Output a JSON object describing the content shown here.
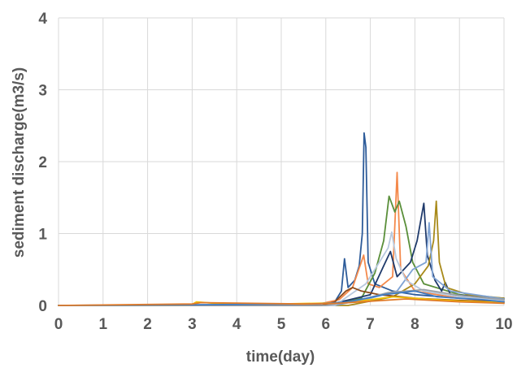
{
  "chart_data": {
    "type": "line",
    "title": "",
    "xlabel": "time(day)",
    "ylabel": "sediment discharge(m3/s)",
    "xlim": [
      0,
      10
    ],
    "ylim": [
      0,
      4
    ],
    "xticks": [
      0,
      1,
      2,
      3,
      4,
      5,
      6,
      7,
      8,
      9,
      10
    ],
    "yticks": [
      0,
      1,
      2,
      3,
      4
    ],
    "grid": true,
    "legend": "none",
    "series": [
      {
        "color": "#2e5c9a",
        "points": [
          [
            0,
            0
          ],
          [
            5.6,
            0
          ],
          [
            6.2,
            0.05
          ],
          [
            6.35,
            0.2
          ],
          [
            6.42,
            0.65
          ],
          [
            6.5,
            0.25
          ],
          [
            6.65,
            0.35
          ],
          [
            6.75,
            0.55
          ],
          [
            6.82,
            1.0
          ],
          [
            6.86,
            2.4
          ],
          [
            6.9,
            2.2
          ],
          [
            6.95,
            0.6
          ],
          [
            7.1,
            0.3
          ],
          [
            7.5,
            0.2
          ],
          [
            8.0,
            0.15
          ],
          [
            9.0,
            0.1
          ],
          [
            10,
            0.07
          ]
        ]
      },
      {
        "color": "#f4894b",
        "points": [
          [
            0,
            0
          ],
          [
            5.7,
            0
          ],
          [
            6.3,
            0.08
          ],
          [
            6.6,
            0.25
          ],
          [
            6.85,
            0.7
          ],
          [
            6.95,
            0.3
          ],
          [
            7.2,
            0.25
          ],
          [
            7.5,
            0.4
          ],
          [
            7.6,
            1.85
          ],
          [
            7.68,
            0.5
          ],
          [
            8.0,
            0.2
          ],
          [
            9.0,
            0.1
          ],
          [
            10,
            0.05
          ]
        ]
      },
      {
        "color": "#5a8f3a",
        "points": [
          [
            0,
            0
          ],
          [
            6.0,
            0
          ],
          [
            6.8,
            0.1
          ],
          [
            7.1,
            0.45
          ],
          [
            7.3,
            0.9
          ],
          [
            7.42,
            1.52
          ],
          [
            7.55,
            1.3
          ],
          [
            7.65,
            1.45
          ],
          [
            7.8,
            1.1
          ],
          [
            7.95,
            0.6
          ],
          [
            8.2,
            0.3
          ],
          [
            9.0,
            0.15
          ],
          [
            10,
            0.08
          ]
        ]
      },
      {
        "color": "#1f3a6b",
        "points": [
          [
            0,
            0
          ],
          [
            6.0,
            0
          ],
          [
            7.0,
            0.15
          ],
          [
            7.3,
            0.55
          ],
          [
            7.45,
            0.75
          ],
          [
            7.6,
            0.4
          ],
          [
            7.9,
            0.6
          ],
          [
            8.05,
            0.9
          ],
          [
            8.2,
            1.42
          ],
          [
            8.28,
            0.7
          ],
          [
            8.45,
            0.35
          ],
          [
            8.6,
            0.2
          ],
          [
            8.68,
            0.32
          ],
          [
            8.8,
            0.15
          ],
          [
            10,
            0.1
          ]
        ]
      },
      {
        "color": "#a88a1a",
        "points": [
          [
            0,
            0
          ],
          [
            6.5,
            0
          ],
          [
            7.5,
            0.12
          ],
          [
            8.0,
            0.3
          ],
          [
            8.3,
            0.55
          ],
          [
            8.42,
            0.9
          ],
          [
            8.48,
            1.45
          ],
          [
            8.55,
            0.6
          ],
          [
            8.7,
            0.25
          ],
          [
            9.2,
            0.15
          ],
          [
            10,
            0.1
          ]
        ]
      },
      {
        "color": "#7fa3d4",
        "points": [
          [
            0,
            0
          ],
          [
            6.2,
            0
          ],
          [
            7.0,
            0.1
          ],
          [
            7.6,
            0.2
          ],
          [
            7.95,
            0.5
          ],
          [
            8.1,
            0.55
          ],
          [
            8.25,
            0.6
          ],
          [
            8.32,
            1.15
          ],
          [
            8.4,
            0.4
          ],
          [
            8.8,
            0.2
          ],
          [
            10,
            0.09
          ]
        ]
      },
      {
        "color": "#b8c9de",
        "points": [
          [
            0,
            0
          ],
          [
            6.2,
            0
          ],
          [
            6.9,
            0.3
          ],
          [
            7.2,
            0.6
          ],
          [
            7.4,
            0.8
          ],
          [
            7.48,
            1.02
          ],
          [
            7.58,
            0.65
          ],
          [
            7.8,
            0.35
          ],
          [
            8.2,
            0.2
          ],
          [
            9.0,
            0.12
          ],
          [
            10,
            0.07
          ]
        ]
      },
      {
        "color": "#8b4a1a",
        "points": [
          [
            0,
            0
          ],
          [
            5.9,
            0
          ],
          [
            6.2,
            0.05
          ],
          [
            6.45,
            0.2
          ],
          [
            6.6,
            0.25
          ],
          [
            6.8,
            0.2
          ],
          [
            7.2,
            0.15
          ],
          [
            8.0,
            0.1
          ],
          [
            9.0,
            0.07
          ],
          [
            10,
            0.05
          ]
        ]
      },
      {
        "color": "#f2c200",
        "points": [
          [
            0,
            0
          ],
          [
            2.95,
            0
          ],
          [
            3.1,
            0.05
          ],
          [
            3.5,
            0.03
          ],
          [
            5.0,
            0.02
          ],
          [
            6.5,
            0.04
          ],
          [
            7.0,
            0.08
          ],
          [
            7.5,
            0.12
          ],
          [
            8.0,
            0.1
          ],
          [
            9.0,
            0.06
          ],
          [
            10,
            0.04
          ]
        ]
      },
      {
        "color": "#9aa0a6",
        "points": [
          [
            0,
            0
          ],
          [
            6.0,
            0
          ],
          [
            6.8,
            0.08
          ],
          [
            7.4,
            0.18
          ],
          [
            8.2,
            0.22
          ],
          [
            9.0,
            0.14
          ],
          [
            10,
            0.08
          ]
        ]
      },
      {
        "color": "#3e7cc4",
        "points": [
          [
            0,
            0
          ],
          [
            3.0,
            0.01
          ],
          [
            5.8,
            0.02
          ],
          [
            6.5,
            0.05
          ],
          [
            7.3,
            0.15
          ],
          [
            8.0,
            0.2
          ],
          [
            8.5,
            0.12
          ],
          [
            9.5,
            0.08
          ],
          [
            10,
            0.05
          ]
        ]
      },
      {
        "color": "#e07b2a",
        "points": [
          [
            0,
            0
          ],
          [
            3.0,
            0.02
          ],
          [
            3.2,
            0.04
          ],
          [
            5.5,
            0.02
          ],
          [
            6.3,
            0.03
          ],
          [
            7.8,
            0.09
          ],
          [
            9.0,
            0.05
          ],
          [
            10,
            0.03
          ]
        ]
      }
    ]
  }
}
